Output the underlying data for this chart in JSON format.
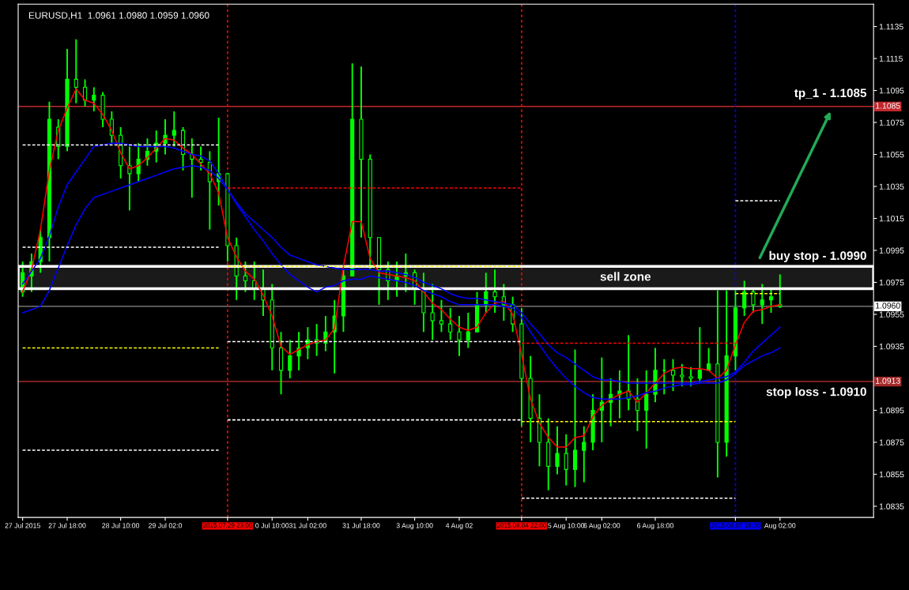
{
  "chart_data": {
    "type": "candlestick",
    "title": "EURUSD,H1  1.0961 1.0980 1.0959 1.0960",
    "color": "#00ff00",
    "categories": [
      "27 Jul 2015",
      null,
      null,
      null,
      null,
      "27 Jul 18:00",
      null,
      null,
      null,
      null,
      null,
      "28 Jul 10:00",
      null,
      null,
      null,
      null,
      "29 Jul 02:0",
      null,
      null,
      null,
      null,
      null,
      null,
      "2015.07.29 23:00",
      null,
      null,
      null,
      null,
      "0 Jul 10:00",
      null,
      null,
      null,
      "31 Jul 02:00",
      null,
      null,
      null,
      null,
      null,
      "31 Jul 18:00",
      null,
      null,
      null,
      null,
      null,
      "3 Aug 10:00",
      null,
      null,
      null,
      null,
      "4 Aug 02",
      null,
      null,
      null,
      null,
      null,
      null,
      "2015.08.04 22:00",
      null,
      null,
      null,
      null,
      "5 Aug 10:00",
      null,
      null,
      null,
      "6 Aug 02:00",
      null,
      null,
      null,
      null,
      null,
      "6 Aug 18:00",
      null,
      null,
      null,
      null,
      null,
      null,
      null,
      null,
      "2015.08.07 18:00",
      null,
      null,
      null,
      null,
      "Aug 02:00"
    ],
    "ohlc": [
      [
        1.0969,
        1.0988,
        1.0966,
        1.0981
      ],
      [
        1.0979,
        1.0993,
        1.0969,
        1.0988
      ],
      [
        1.0988,
        1.1008,
        1.0981,
        1.1003
      ],
      [
        1.1003,
        1.1088,
        1.0988,
        1.1077
      ],
      [
        1.1072,
        1.1077,
        1.1052,
        1.106
      ],
      [
        1.106,
        1.1121,
        1.1057,
        1.1102
      ],
      [
        1.1102,
        1.1127,
        1.1087,
        1.1097
      ],
      [
        1.1097,
        1.1102,
        1.1085,
        1.1089
      ],
      [
        1.1089,
        1.1097,
        1.1082,
        1.1092
      ],
      [
        1.1092,
        1.1094,
        1.1072,
        1.1077
      ],
      [
        1.1077,
        1.1082,
        1.1062,
        1.1067
      ],
      [
        1.1067,
        1.1072,
        1.104,
        1.1048
      ],
      [
        1.1048,
        1.106,
        1.102,
        1.1043
      ],
      [
        1.1043,
        1.1062,
        1.1038,
        1.1052
      ],
      [
        1.1052,
        1.1065,
        1.1048,
        1.1057
      ],
      [
        1.1057,
        1.107,
        1.105,
        1.1062
      ],
      [
        1.1062,
        1.1077,
        1.1055,
        1.1067
      ],
      [
        1.1067,
        1.1082,
        1.106,
        1.107
      ],
      [
        1.107,
        1.1072,
        1.1045,
        1.1055
      ],
      [
        1.1055,
        1.1065,
        1.1028,
        1.1052
      ],
      [
        1.1052,
        1.106,
        1.1045,
        1.105
      ],
      [
        1.105,
        1.1057,
        1.1008,
        1.1038
      ],
      [
        1.1038,
        1.1078,
        1.1023,
        1.1043
      ],
      [
        1.1043,
        1.1043,
        1.0988,
        1.0998
      ],
      [
        1.0998,
        1.1003,
        1.0964,
        1.0979
      ],
      [
        1.0979,
        1.0988,
        1.0969,
        1.0976
      ],
      [
        1.0976,
        1.0988,
        1.0964,
        1.0971
      ],
      [
        1.0971,
        1.0983,
        1.0954,
        1.0964
      ],
      [
        1.0964,
        1.0974,
        1.092,
        1.0934
      ],
      [
        1.0934,
        1.0944,
        1.0905,
        1.092
      ],
      [
        1.092,
        1.0939,
        1.0915,
        1.0929
      ],
      [
        1.0929,
        1.0944,
        1.092,
        1.0934
      ],
      [
        1.0934,
        1.0947,
        1.0927,
        1.0939
      ],
      [
        1.0939,
        1.0949,
        1.0929,
        1.0937
      ],
      [
        1.0937,
        1.0954,
        1.0932,
        1.0944
      ],
      [
        1.0944,
        1.0964,
        1.0918,
        1.0954
      ],
      [
        1.0954,
        1.0983,
        1.0944,
        1.0979
      ],
      [
        1.0979,
        1.1112,
        1.0979,
        1.1077
      ],
      [
        1.1077,
        1.111,
        1.1003,
        1.1052
      ],
      [
        1.1052,
        1.1055,
        1.0983,
        1.1003
      ],
      [
        1.1003,
        1.1003,
        1.0961,
        1.0983
      ],
      [
        1.0983,
        1.0988,
        1.0964,
        1.0976
      ],
      [
        1.0976,
        1.0988,
        1.0966,
        1.0979
      ],
      [
        1.0979,
        1.0993,
        1.0969,
        1.0981
      ],
      [
        1.0981,
        1.0983,
        1.0961,
        1.0971
      ],
      [
        1.0971,
        1.0981,
        1.0944,
        1.0956
      ],
      [
        1.0956,
        1.0974,
        1.0939,
        1.0951
      ],
      [
        1.0951,
        1.0964,
        1.0944,
        1.0949
      ],
      [
        1.0949,
        1.0959,
        1.0939,
        1.0944
      ],
      [
        1.0944,
        1.0954,
        1.0929,
        1.0939
      ],
      [
        1.0939,
        1.0956,
        1.0934,
        1.0944
      ],
      [
        1.0944,
        1.0969,
        1.0944,
        1.0961
      ],
      [
        1.0961,
        1.0981,
        1.0956,
        1.0969
      ],
      [
        1.0969,
        1.0983,
        1.0956,
        1.0966
      ],
      [
        1.0966,
        1.0974,
        1.0951,
        1.0961
      ],
      [
        1.0961,
        1.0966,
        1.0944,
        1.0949
      ],
      [
        1.0949,
        1.0959,
        1.0885,
        1.0915
      ],
      [
        1.0915,
        1.0929,
        1.0875,
        1.089
      ],
      [
        1.089,
        1.0905,
        1.086,
        1.0875
      ],
      [
        1.0875,
        1.089,
        1.0845,
        1.086
      ],
      [
        1.086,
        1.0885,
        1.0855,
        1.0868
      ],
      [
        1.0868,
        1.088,
        1.0848,
        1.0858
      ],
      [
        1.0858,
        1.0933,
        1.0847,
        1.087
      ],
      [
        1.087,
        1.0885,
        1.085,
        1.0875
      ],
      [
        1.0875,
        1.0905,
        1.087,
        1.0895
      ],
      [
        1.0895,
        1.0928,
        1.0875,
        1.09
      ],
      [
        1.09,
        1.0915,
        1.0885,
        1.0905
      ],
      [
        1.0905,
        1.092,
        1.089,
        1.0907
      ],
      [
        1.0907,
        1.0942,
        1.0895,
        1.0902
      ],
      [
        1.0902,
        1.0915,
        1.0882,
        1.0895
      ],
      [
        1.0895,
        1.092,
        1.0871,
        1.0905
      ],
      [
        1.0905,
        1.0934,
        1.09,
        1.092
      ],
      [
        1.092,
        1.0927,
        1.0905,
        1.092
      ],
      [
        1.092,
        1.0927,
        1.0907,
        1.0917
      ],
      [
        1.0917,
        1.0924,
        1.091,
        1.0916
      ],
      [
        1.0916,
        1.0922,
        1.091,
        1.0915
      ],
      [
        1.0915,
        1.0947,
        1.0912,
        1.092
      ],
      [
        1.092,
        1.0934,
        1.092,
        1.0924
      ],
      [
        1.0924,
        1.097,
        1.0853,
        1.0875
      ],
      [
        1.0875,
        1.097,
        1.0866,
        1.0929
      ],
      [
        1.0929,
        1.097,
        1.092,
        1.0959
      ],
      [
        1.0959,
        1.0976,
        1.0954,
        1.0969
      ],
      [
        1.0969,
        1.0971,
        1.0956,
        1.0961
      ],
      [
        1.0961,
        1.0974,
        1.0949,
        1.0964
      ],
      [
        1.0964,
        1.0971,
        1.0956,
        1.0966
      ],
      [
        1.0961,
        1.098,
        1.0959,
        1.096
      ]
    ],
    "series": [
      {
        "type": "line",
        "color": "#ff0000",
        "line_style": "solid",
        "values": [
          1.0969,
          1.0983,
          1.1008,
          1.1045,
          1.107,
          1.1084,
          1.1096,
          1.1089,
          1.1087,
          1.108,
          1.107,
          1.1056,
          1.1046,
          1.1048,
          1.1053,
          1.1059,
          1.1065,
          1.1064,
          1.1059,
          1.1055,
          1.1049,
          1.1043,
          1.1031,
          1.1003,
          1.0991,
          1.0982,
          1.0977,
          1.0967,
          1.0954,
          1.0935,
          1.093,
          1.0933,
          1.0936,
          1.0938,
          1.0939,
          1.0946,
          1.0985,
          1.1013,
          1.1013,
          1.099,
          1.0981,
          1.098,
          1.0979,
          1.0978,
          1.0976,
          1.0969,
          1.0962,
          1.0958,
          1.0952,
          1.0947,
          1.0945,
          1.0947,
          1.0956,
          1.0962,
          1.0963,
          1.0955,
          1.093,
          1.0902,
          1.0887,
          1.0878,
          1.0872,
          1.0872,
          1.0878,
          1.0879,
          1.0891,
          1.0898,
          1.0902,
          1.0905,
          1.0907,
          1.09,
          1.0906,
          1.0912,
          1.0918,
          1.0921,
          1.0922,
          1.0921,
          1.0921,
          1.092,
          1.0915,
          1.092,
          1.0936,
          1.095,
          1.0957,
          1.0958,
          1.096,
          1.0961
        ]
      },
      {
        "type": "line",
        "color": "#0000ff",
        "line_style": "solid",
        "values": [
          1.0974,
          1.0982,
          1.099,
          1.1004,
          1.1022,
          1.1036,
          1.1044,
          1.1052,
          1.106,
          1.1061,
          1.1062,
          1.1062,
          1.1061,
          1.106,
          1.106,
          1.106,
          1.106,
          1.1059,
          1.1057,
          1.1055,
          1.1054,
          1.1051,
          1.1043,
          1.1033,
          1.1025,
          1.1018,
          1.1013,
          1.1008,
          1.1003,
          1.0997,
          1.0992,
          1.099,
          1.0988,
          1.0986,
          1.0985,
          1.0984,
          1.0983,
          1.0983,
          1.0983,
          1.0983,
          1.0982,
          1.0982,
          1.0981,
          1.098,
          1.0978,
          1.0975,
          1.0973,
          1.0971,
          1.0968,
          1.0966,
          1.0965,
          1.0965,
          1.0964,
          1.0963,
          1.0962,
          1.0961,
          1.0956,
          1.0949,
          1.0943,
          1.0936,
          1.0931,
          1.0928,
          1.0924,
          1.092,
          1.0916,
          1.0914,
          1.0914,
          1.0913,
          1.0912,
          1.0912,
          1.0912,
          1.0912,
          1.0912,
          1.0912,
          1.0912,
          1.0912,
          1.0913,
          1.0914,
          1.0915,
          1.0916,
          1.0919,
          1.0925,
          1.0932,
          1.0937,
          1.0942,
          1.0947
        ]
      },
      {
        "type": "line",
        "color": "#0000ff",
        "line_style": "solid",
        "values": [
          1.0956,
          1.0958,
          1.096,
          1.097,
          1.0984,
          1.0998,
          1.1011,
          1.1021,
          1.1028,
          1.103,
          1.1032,
          1.1034,
          1.1036,
          1.1038,
          1.104,
          1.1042,
          1.1044,
          1.1046,
          1.1047,
          1.1048,
          1.1047,
          1.1045,
          1.104,
          1.1033,
          1.1024,
          1.1016,
          1.1008,
          1.1001,
          1.0993,
          1.0986,
          1.098,
          1.0976,
          1.0972,
          1.0969,
          1.0972,
          1.0973,
          1.0976,
          1.0977,
          1.0977,
          1.0979,
          1.0978,
          1.0977,
          1.0976,
          1.0975,
          1.0973,
          1.097,
          1.0968,
          1.0966,
          1.0963,
          1.0961,
          1.0961,
          1.0961,
          1.0961,
          1.0961,
          1.096,
          1.0959,
          1.0953,
          1.0944,
          1.0936,
          1.0928,
          1.0921,
          1.0915,
          1.091,
          1.0906,
          1.0903,
          1.0902,
          1.0902,
          1.0902,
          1.0903,
          1.0904,
          1.0906,
          1.0907,
          1.0909,
          1.091,
          1.0911,
          1.0911,
          1.0912,
          1.0912,
          1.0912,
          1.0914,
          1.0918,
          1.0923,
          1.0926,
          1.0929,
          1.0931,
          1.0934
        ]
      },
      {
        "type": "line",
        "color": "#ffffff",
        "line_style": "dashed",
        "values": [
          1.1061,
          1.1061,
          1.1061,
          1.1061,
          1.1061,
          1.1061,
          1.1061,
          1.1061,
          1.1061,
          1.1061,
          1.1061,
          1.1061,
          1.1061,
          1.1061,
          1.1061,
          1.1061,
          1.1061,
          1.1061,
          1.1061,
          1.1061,
          1.1061,
          1.1061,
          1.1061,
          null,
          null,
          null,
          null,
          null,
          null,
          null,
          null,
          null,
          null,
          null,
          null,
          null,
          null,
          null,
          null,
          null,
          null,
          null,
          null,
          null,
          null,
          null,
          null,
          null,
          null,
          null,
          null,
          null,
          null,
          null,
          null,
          null,
          null,
          null,
          null,
          null,
          null,
          null,
          null,
          null,
          null,
          null,
          null,
          null,
          null,
          null,
          null,
          null,
          null,
          null,
          null,
          null,
          null,
          null,
          null,
          null,
          null,
          null,
          null,
          null,
          null,
          null
        ]
      },
      {
        "type": "line",
        "color": "#ffffff",
        "line_style": "dashed",
        "values": [
          1.0997,
          1.0997,
          1.0997,
          1.0997,
          1.0997,
          1.0997,
          1.0997,
          1.0997,
          1.0997,
          1.0997,
          1.0997,
          1.0997,
          1.0997,
          1.0997,
          1.0997,
          1.0997,
          1.0997,
          1.0997,
          1.0997,
          1.0997,
          1.0997,
          1.0997,
          1.0997,
          null,
          null,
          null,
          null,
          null,
          null,
          null,
          null,
          null,
          null,
          null,
          null,
          null,
          null,
          null,
          null,
          null,
          null,
          null,
          null,
          null,
          null,
          null,
          null,
          null,
          null,
          null,
          null,
          null,
          null,
          null,
          null,
          null,
          null,
          null,
          null,
          null,
          null,
          null,
          null,
          null,
          null,
          null,
          null,
          null,
          null,
          null,
          null,
          null,
          null,
          null,
          null,
          null,
          null,
          null,
          null,
          null,
          null,
          null,
          null,
          null,
          null,
          null
        ]
      },
      {
        "type": "line",
        "color": "#ffff00",
        "line_style": "dashed",
        "values": [
          1.0934,
          1.0934,
          1.0934,
          1.0934,
          1.0934,
          1.0934,
          1.0934,
          1.0934,
          1.0934,
          1.0934,
          1.0934,
          1.0934,
          1.0934,
          1.0934,
          1.0934,
          1.0934,
          1.0934,
          1.0934,
          1.0934,
          1.0934,
          1.0934,
          1.0934,
          1.0934,
          null,
          null,
          null,
          null,
          null,
          null,
          null,
          null,
          null,
          null,
          null,
          null,
          null,
          null,
          null,
          null,
          null,
          null,
          null,
          null,
          null,
          null,
          null,
          null,
          null,
          null,
          null,
          null,
          null,
          null,
          null,
          null,
          null,
          null,
          null,
          null,
          null,
          null,
          null,
          null,
          null,
          null,
          null,
          null,
          null,
          null,
          null,
          null,
          null,
          null,
          null,
          null,
          null,
          null,
          null,
          null,
          null,
          null,
          null,
          null,
          null,
          null,
          null
        ]
      },
      {
        "type": "line",
        "color": "#ffffff",
        "line_style": "dashed",
        "values": [
          1.087,
          1.087,
          1.087,
          1.087,
          1.087,
          1.087,
          1.087,
          1.087,
          1.087,
          1.087,
          1.087,
          1.087,
          1.087,
          1.087,
          1.087,
          1.087,
          1.087,
          1.087,
          1.087,
          1.087,
          1.087,
          1.087,
          1.087,
          null,
          null,
          null,
          null,
          null,
          null,
          null,
          null,
          null,
          null,
          null,
          null,
          null,
          null,
          null,
          null,
          null,
          null,
          null,
          null,
          null,
          null,
          null,
          null,
          null,
          null,
          null,
          null,
          null,
          null,
          null,
          null,
          null,
          null,
          null,
          null,
          null,
          null,
          null,
          null,
          null,
          null,
          null,
          null,
          null,
          null,
          null,
          null,
          null,
          null,
          null,
          null,
          null,
          null,
          null,
          null,
          null,
          null,
          null,
          null,
          null,
          null,
          null
        ]
      },
      {
        "type": "line",
        "color": "#ff0000",
        "line_style": "dashed",
        "values": [
          null,
          null,
          null,
          null,
          null,
          null,
          null,
          null,
          null,
          null,
          null,
          null,
          null,
          null,
          null,
          null,
          null,
          null,
          null,
          null,
          null,
          null,
          null,
          1.1034,
          1.1034,
          1.1034,
          1.1034,
          1.1034,
          1.1034,
          1.1034,
          1.1034,
          1.1034,
          1.1034,
          1.1034,
          1.1034,
          1.1034,
          1.1034,
          1.1034,
          1.1034,
          1.1034,
          1.1034,
          1.1034,
          1.1034,
          1.1034,
          1.1034,
          1.1034,
          1.1034,
          1.1034,
          1.1034,
          1.1034,
          1.1034,
          1.1034,
          1.1034,
          1.1034,
          1.1034,
          1.1034,
          1.1034,
          null,
          null,
          null,
          null,
          null,
          null,
          null,
          null,
          null,
          null,
          null,
          null,
          null,
          null,
          null,
          null,
          null,
          null,
          null,
          null,
          null,
          null,
          null,
          null,
          null,
          null,
          null,
          null,
          null
        ]
      },
      {
        "type": "line",
        "color": "#ffff00",
        "line_style": "dashed",
        "values": [
          null,
          null,
          null,
          null,
          null,
          null,
          null,
          null,
          null,
          null,
          null,
          null,
          null,
          null,
          null,
          null,
          null,
          null,
          null,
          null,
          null,
          null,
          null,
          1.0985,
          1.0985,
          1.0985,
          1.0985,
          1.0985,
          1.0985,
          1.0985,
          1.0985,
          1.0985,
          1.0985,
          1.0985,
          1.0985,
          1.0985,
          1.0985,
          1.0985,
          1.0985,
          1.0985,
          1.0985,
          1.0985,
          1.0985,
          1.0985,
          1.0985,
          1.0985,
          1.0985,
          1.0985,
          1.0985,
          1.0985,
          1.0985,
          1.0985,
          1.0985,
          1.0985,
          1.0985,
          1.0985,
          1.0985,
          null,
          null,
          null,
          null,
          null,
          null,
          null,
          null,
          null,
          null,
          null,
          null,
          null,
          null,
          null,
          null,
          null,
          null,
          null,
          null,
          null,
          null,
          null,
          null,
          null,
          null,
          null,
          null,
          null
        ]
      },
      {
        "type": "line",
        "color": "#ffffff",
        "line_style": "dashed",
        "values": [
          null,
          null,
          null,
          null,
          null,
          null,
          null,
          null,
          null,
          null,
          null,
          null,
          null,
          null,
          null,
          null,
          null,
          null,
          null,
          null,
          null,
          null,
          null,
          1.0938,
          1.0938,
          1.0938,
          1.0938,
          1.0938,
          1.0938,
          1.0938,
          1.0938,
          1.0938,
          1.0938,
          1.0938,
          1.0938,
          1.0938,
          1.0938,
          1.0938,
          1.0938,
          1.0938,
          1.0938,
          1.0938,
          1.0938,
          1.0938,
          1.0938,
          1.0938,
          1.0938,
          1.0938,
          1.0938,
          1.0938,
          1.0938,
          1.0938,
          1.0938,
          1.0938,
          1.0938,
          1.0938,
          1.0938,
          null,
          null,
          null,
          null,
          null,
          null,
          null,
          null,
          null,
          null,
          null,
          null,
          null,
          null,
          null,
          null,
          null,
          null,
          null,
          null,
          null,
          null,
          null,
          null,
          null,
          null,
          null,
          null,
          null
        ]
      },
      {
        "type": "line",
        "color": "#ffffff",
        "line_style": "dashed",
        "values": [
          null,
          null,
          null,
          null,
          null,
          null,
          null,
          null,
          null,
          null,
          null,
          null,
          null,
          null,
          null,
          null,
          null,
          null,
          null,
          null,
          null,
          null,
          null,
          1.0889,
          1.0889,
          1.0889,
          1.0889,
          1.0889,
          1.0889,
          1.0889,
          1.0889,
          1.0889,
          1.0889,
          1.0889,
          1.0889,
          1.0889,
          1.0889,
          1.0889,
          1.0889,
          1.0889,
          1.0889,
          1.0889,
          1.0889,
          1.0889,
          1.0889,
          1.0889,
          1.0889,
          1.0889,
          1.0889,
          1.0889,
          1.0889,
          1.0889,
          1.0889,
          1.0889,
          1.0889,
          1.0889,
          1.0889,
          null,
          null,
          null,
          null,
          null,
          null,
          null,
          null,
          null,
          null,
          null,
          null,
          null,
          null,
          null,
          null,
          null,
          null,
          null,
          null,
          null,
          null,
          null,
          null,
          null,
          null,
          null,
          null,
          null
        ]
      },
      {
        "type": "line",
        "color": "#ff0000",
        "line_style": "dashed",
        "values": [
          null,
          null,
          null,
          null,
          null,
          null,
          null,
          null,
          null,
          null,
          null,
          null,
          null,
          null,
          null,
          null,
          null,
          null,
          null,
          null,
          null,
          null,
          null,
          null,
          null,
          null,
          null,
          null,
          null,
          null,
          null,
          null,
          null,
          null,
          null,
          null,
          null,
          null,
          null,
          null,
          null,
          null,
          null,
          null,
          null,
          null,
          null,
          null,
          null,
          null,
          null,
          null,
          null,
          null,
          null,
          null,
          1.0937,
          1.0937,
          1.0937,
          1.0937,
          1.0937,
          1.0937,
          1.0937,
          1.0937,
          1.0937,
          1.0937,
          1.0937,
          1.0937,
          1.0937,
          1.0937,
          1.0937,
          1.0937,
          1.0937,
          1.0937,
          1.0937,
          1.0937,
          1.0937,
          1.0937,
          1.0937,
          1.0937,
          1.0937,
          null,
          null,
          null,
          null,
          null
        ]
      },
      {
        "type": "line",
        "color": "#ffff00",
        "line_style": "dashed",
        "values": [
          null,
          null,
          null,
          null,
          null,
          null,
          null,
          null,
          null,
          null,
          null,
          null,
          null,
          null,
          null,
          null,
          null,
          null,
          null,
          null,
          null,
          null,
          null,
          null,
          null,
          null,
          null,
          null,
          null,
          null,
          null,
          null,
          null,
          null,
          null,
          null,
          null,
          null,
          null,
          null,
          null,
          null,
          null,
          null,
          null,
          null,
          null,
          null,
          null,
          null,
          null,
          null,
          null,
          null,
          null,
          null,
          1.0888,
          1.0888,
          1.0888,
          1.0888,
          1.0888,
          1.0888,
          1.0888,
          1.0888,
          1.0888,
          1.0888,
          1.0888,
          1.0888,
          1.0888,
          1.0888,
          1.0888,
          1.0888,
          1.0888,
          1.0888,
          1.0888,
          1.0888,
          1.0888,
          1.0888,
          1.0888,
          1.0888,
          1.0888,
          null,
          null,
          null,
          null,
          null
        ]
      },
      {
        "type": "line",
        "color": "#ffffff",
        "line_style": "dashed",
        "values": [
          null,
          null,
          null,
          null,
          null,
          null,
          null,
          null,
          null,
          null,
          null,
          null,
          null,
          null,
          null,
          null,
          null,
          null,
          null,
          null,
          null,
          null,
          null,
          null,
          null,
          null,
          null,
          null,
          null,
          null,
          null,
          null,
          null,
          null,
          null,
          null,
          null,
          null,
          null,
          null,
          null,
          null,
          null,
          null,
          null,
          null,
          null,
          null,
          null,
          null,
          null,
          null,
          null,
          null,
          null,
          null,
          1.084,
          1.084,
          1.084,
          1.084,
          1.084,
          1.084,
          1.084,
          1.084,
          1.084,
          1.084,
          1.084,
          1.084,
          1.084,
          1.084,
          1.084,
          1.084,
          1.084,
          1.084,
          1.084,
          1.084,
          1.084,
          1.084,
          1.084,
          1.084,
          1.084,
          null,
          null,
          null,
          null,
          null
        ]
      },
      {
        "type": "line",
        "color": "#ffffff",
        "line_style": "dashed",
        "values": [
          null,
          null,
          null,
          null,
          null,
          null,
          null,
          null,
          null,
          null,
          null,
          null,
          null,
          null,
          null,
          null,
          null,
          null,
          null,
          null,
          null,
          null,
          null,
          null,
          null,
          null,
          null,
          null,
          null,
          null,
          null,
          null,
          null,
          null,
          null,
          null,
          null,
          null,
          null,
          null,
          null,
          null,
          null,
          null,
          null,
          null,
          null,
          null,
          null,
          null,
          null,
          null,
          null,
          null,
          null,
          null,
          null,
          null,
          null,
          null,
          null,
          null,
          null,
          null,
          null,
          null,
          null,
          null,
          null,
          null,
          null,
          null,
          null,
          null,
          null,
          null,
          null,
          null,
          null,
          null,
          1.1026,
          1.1026,
          1.1026,
          1.1026,
          1.1026,
          1.1026
        ]
      },
      {
        "type": "line",
        "color": "#ffff00",
        "line_style": "dashed",
        "values": [
          null,
          null,
          null,
          null,
          null,
          null,
          null,
          null,
          null,
          null,
          null,
          null,
          null,
          null,
          null,
          null,
          null,
          null,
          null,
          null,
          null,
          null,
          null,
          null,
          null,
          null,
          null,
          null,
          null,
          null,
          null,
          null,
          null,
          null,
          null,
          null,
          null,
          null,
          null,
          null,
          null,
          null,
          null,
          null,
          null,
          null,
          null,
          null,
          null,
          null,
          null,
          null,
          null,
          null,
          null,
          null,
          null,
          null,
          null,
          null,
          null,
          null,
          null,
          null,
          null,
          null,
          null,
          null,
          null,
          null,
          null,
          null,
          null,
          null,
          null,
          null,
          null,
          null,
          null,
          null,
          1.0968,
          1.0968,
          1.0968,
          1.0968,
          1.0968,
          1.0968
        ]
      }
    ],
    "ylim": [
      1.0828,
      1.1149
    ],
    "yticks": [
      1.1135,
      1.1115,
      1.1095,
      1.1075,
      1.1055,
      1.1035,
      1.1015,
      1.0995,
      1.0975,
      1.0955,
      1.0935,
      1.0895,
      1.0875,
      1.0855,
      1.0835
    ],
    "ref_lines": [
      {
        "axis": "y",
        "value": 1.1085,
        "label": "1.1085",
        "color": "#c0282d",
        "line_style": "solid"
      },
      {
        "axis": "y",
        "value": 1.096,
        "label": "1.0960",
        "color": "#8c8c8c",
        "line_style": "solid"
      },
      {
        "axis": "y",
        "value": 1.0913,
        "label": "1.0913",
        "color": "#a52a2a",
        "line_style": "solid"
      },
      {
        "axis": "x",
        "value": "2015.07.29 23:00",
        "color": "#ff0000",
        "line_style": "dotted"
      },
      {
        "axis": "x",
        "value": "2015.08.04 22:00",
        "color": "#ff0000",
        "line_style": "dotted"
      },
      {
        "axis": "x",
        "value": "2015.08.07 18:00",
        "color": "#0000ff",
        "line_style": "dotted"
      }
    ],
    "bands": [
      {
        "axis": "y",
        "from": 1.0971,
        "to": 1.0985,
        "label": "sell zone",
        "color": "#ffffff"
      }
    ],
    "annotations": [
      "tp_1 - 1.1085",
      "buy stop - 1.0990",
      "stop loss - 1.0910"
    ],
    "grid": false,
    "legend": false,
    "marker": "none"
  }
}
